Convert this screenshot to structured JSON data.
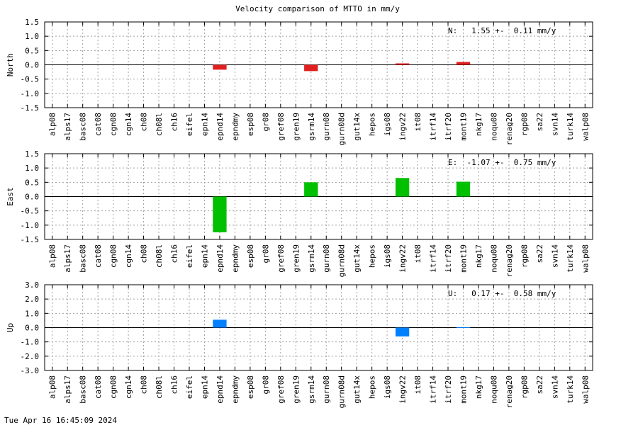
{
  "title": "Velocity comparison of MTTO in mm/y",
  "footer": "Tue Apr 16 16:45:09 2024",
  "chart_data": [
    {
      "type": "bar",
      "ylabel": "North",
      "ylim": [
        -1.5,
        1.5
      ],
      "yticks": [
        "1.5",
        "1.0",
        "0.5",
        "0.0",
        "-0.5",
        "-1.0",
        "-1.5"
      ],
      "annotation": "N:   1.55 +-  0.11 mm/y",
      "color": "#e02020",
      "grid": true,
      "categories": [
        "alp08",
        "alps17",
        "basc08",
        "cat08",
        "cgn08",
        "cgn14",
        "ch08",
        "ch08l",
        "ch16",
        "eifel",
        "epn14",
        "epnd14",
        "epndmy",
        "esp08",
        "gr08",
        "gref08",
        "gren19",
        "gsrm14",
        "gurn08",
        "gurn08d",
        "gut14x",
        "hepos",
        "igs08",
        "ingv22",
        "it08",
        "itrf14",
        "itrf20",
        "mont19",
        "nkg17",
        "noqu08",
        "renag20",
        "rgp08",
        "sa22",
        "svn14",
        "turk14",
        "walp08"
      ],
      "values": [
        null,
        null,
        null,
        null,
        null,
        null,
        null,
        null,
        null,
        null,
        null,
        -0.17,
        null,
        null,
        null,
        null,
        null,
        -0.22,
        null,
        null,
        null,
        null,
        null,
        0.05,
        null,
        null,
        null,
        0.1,
        null,
        null,
        null,
        null,
        null,
        null,
        null,
        null
      ]
    },
    {
      "type": "bar",
      "ylabel": "East",
      "ylim": [
        -1.5,
        1.5
      ],
      "yticks": [
        "1.5",
        "1.0",
        "0.5",
        "0.0",
        "-0.5",
        "-1.0",
        "-1.5"
      ],
      "annotation": "E:  -1.07 +-  0.75 mm/y",
      "color": "#00c000",
      "grid": true,
      "categories": [
        "alp08",
        "alps17",
        "basc08",
        "cat08",
        "cgn08",
        "cgn14",
        "ch08",
        "ch08l",
        "ch16",
        "eifel",
        "epn14",
        "epnd14",
        "epndmy",
        "esp08",
        "gr08",
        "gref08",
        "gren19",
        "gsrm14",
        "gurn08",
        "gurn08d",
        "gut14x",
        "hepos",
        "igs08",
        "ingv22",
        "it08",
        "itrf14",
        "itrf20",
        "mont19",
        "nkg17",
        "noqu08",
        "renag20",
        "rgp08",
        "sa22",
        "svn14",
        "turk14",
        "walp08"
      ],
      "values": [
        null,
        null,
        null,
        null,
        null,
        null,
        null,
        null,
        null,
        null,
        null,
        -1.25,
        null,
        null,
        null,
        null,
        null,
        0.5,
        null,
        null,
        null,
        null,
        null,
        0.65,
        null,
        null,
        null,
        0.52,
        null,
        null,
        null,
        null,
        null,
        null,
        null,
        null
      ]
    },
    {
      "type": "bar",
      "ylabel": "Up",
      "ylim": [
        -3.0,
        3.0
      ],
      "yticks": [
        "3.0",
        "2.0",
        "1.0",
        "0.0",
        "-1.0",
        "-2.0",
        "-3.0"
      ],
      "annotation": "U:   0.17 +-  0.58 mm/y",
      "color": "#0080ff",
      "grid": true,
      "categories": [
        "alp08",
        "alps17",
        "basc08",
        "cat08",
        "cgn08",
        "cgn14",
        "ch08",
        "ch08l",
        "ch16",
        "eifel",
        "epn14",
        "epnd14",
        "epndmy",
        "esp08",
        "gr08",
        "gref08",
        "gren19",
        "gsrm14",
        "gurn08",
        "gurn08d",
        "gut14x",
        "hepos",
        "igs08",
        "ingv22",
        "it08",
        "itrf14",
        "itrf20",
        "mont19",
        "nkg17",
        "noqu08",
        "renag20",
        "rgp08",
        "sa22",
        "svn14",
        "turk14",
        "walp08"
      ],
      "values": [
        null,
        null,
        null,
        null,
        null,
        null,
        null,
        null,
        null,
        null,
        null,
        0.55,
        null,
        null,
        null,
        null,
        null,
        null,
        null,
        null,
        null,
        null,
        null,
        -0.62,
        null,
        null,
        null,
        0.03,
        null,
        null,
        null,
        null,
        null,
        null,
        null,
        null
      ]
    }
  ]
}
